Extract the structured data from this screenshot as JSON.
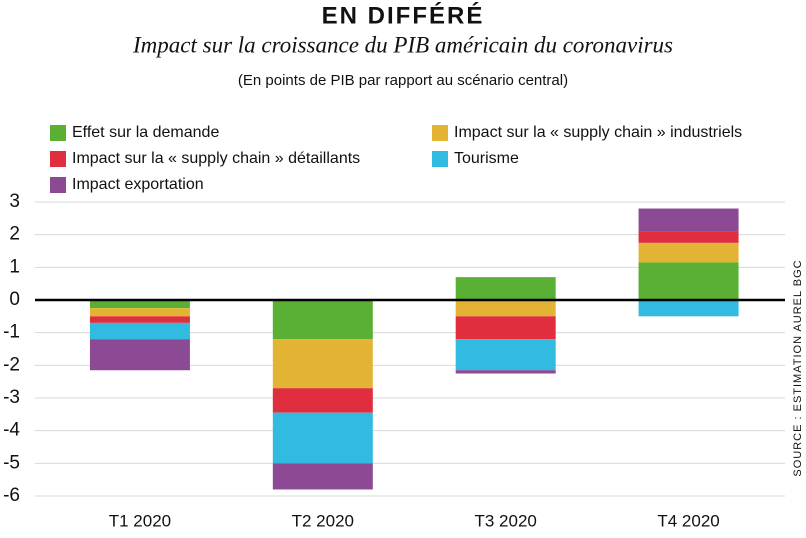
{
  "chart_data": {
    "type": "stacked_bar",
    "title": "EN DIFFÉRÉ",
    "subtitle": "Impact sur la croissance du PIB américain du coronavirus",
    "note": "(En points de PIB par rapport au scénario central)",
    "source": "SOURCE : ESTIMATION AUREL BGC",
    "categories": [
      "T1 2020",
      "T2 2020",
      "T3 2020",
      "T4 2020"
    ],
    "series": [
      {
        "name": "Effet sur la demande",
        "color": "#5aaf35",
        "values": [
          -0.25,
          -1.2,
          0.7,
          1.15
        ]
      },
      {
        "name": "Impact sur la « supply chain » industriels",
        "color": "#e3b434",
        "values": [
          -0.25,
          -1.5,
          -0.5,
          0.6
        ]
      },
      {
        "name": "Impact sur la « supply chain » détaillants",
        "color": "#e02e3e",
        "values": [
          -0.2,
          -0.75,
          -0.7,
          0.35
        ]
      },
      {
        "name": "Tourisme",
        "color": "#31bbe0",
        "values": [
          -0.5,
          -1.55,
          -0.95,
          -0.5
        ]
      },
      {
        "name": "Impact exportation",
        "color": "#8d4a94",
        "values": [
          -0.95,
          -0.8,
          -0.1,
          0.7
        ]
      }
    ],
    "ylim": [
      -6,
      3
    ],
    "yticks": [
      -6,
      -5,
      -4,
      -3,
      -2,
      -1,
      0,
      1,
      2,
      3
    ],
    "grid": true
  }
}
